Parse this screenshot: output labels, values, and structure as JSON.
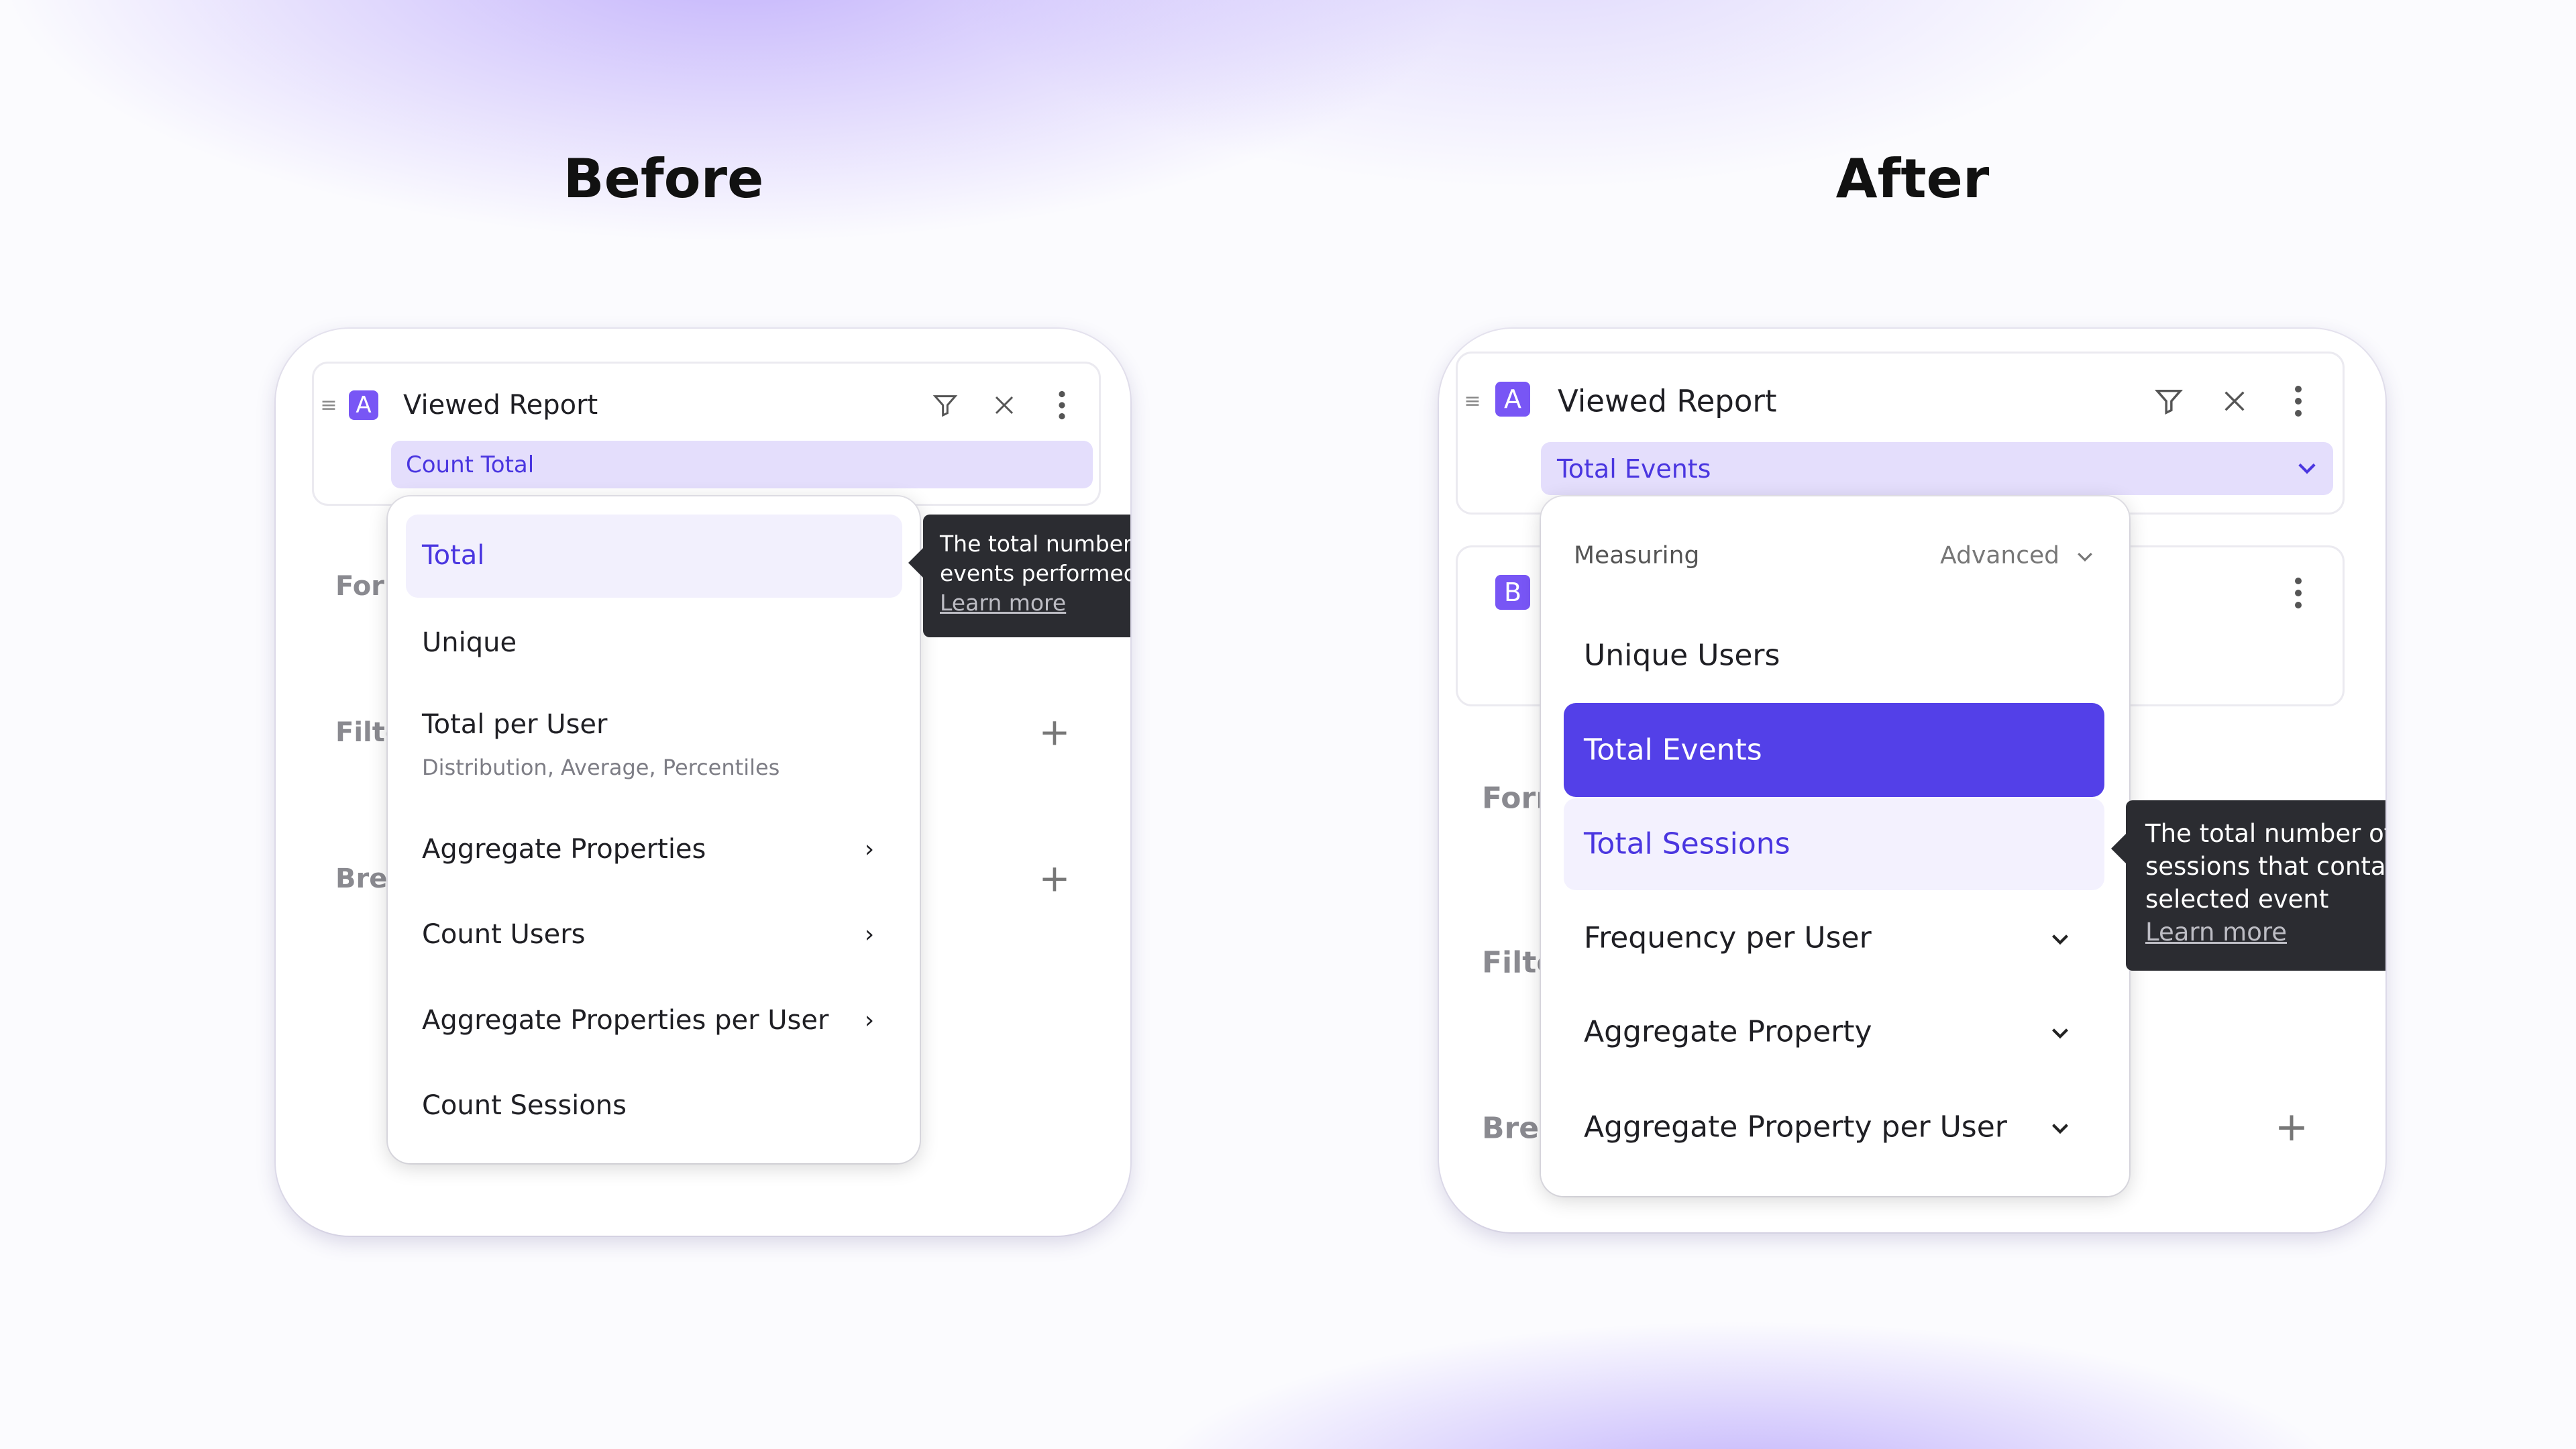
{
  "headings": {
    "before": "Before",
    "after": "After"
  },
  "colors": {
    "accent": "#5340e8",
    "badge": "#7856f5",
    "chip": "#e4defc",
    "tooltip": "#2b2c31"
  },
  "before": {
    "badge": "A",
    "title": "Viewed Report",
    "measure": "Count Total",
    "labels": [
      "Forr",
      "Filte",
      "Brea"
    ],
    "menu": [
      {
        "label": "Total",
        "selected": true
      },
      {
        "label": "Unique"
      },
      {
        "label": "Total per User",
        "subtitle": "Distribution, Average, Percentiles"
      },
      {
        "label": "Aggregate Properties",
        "submenu": true
      },
      {
        "label": "Count Users",
        "submenu": true
      },
      {
        "label": "Aggregate Properties per User",
        "submenu": true
      },
      {
        "label": "Count Sessions"
      }
    ],
    "tooltip": {
      "lines": [
        "The total number",
        "events performed"
      ],
      "link": "Learn more"
    }
  },
  "after": {
    "badge": "A",
    "title": "Viewed Report",
    "measure": "Total Events",
    "badge_b": "B",
    "labels": [
      "Forr",
      "Filte",
      "Brea"
    ],
    "menu_header": "Measuring",
    "menu_mode": "Advanced",
    "menu": [
      {
        "label": "Unique Users"
      },
      {
        "label": "Total Events",
        "selected": true
      },
      {
        "label": "Total Sessions",
        "hovered": true
      },
      {
        "label": "Frequency per User",
        "expandable": true
      },
      {
        "label": "Aggregate Property",
        "expandable": true
      },
      {
        "label": "Aggregate Property per User",
        "expandable": true
      }
    ],
    "tooltip": {
      "lines": [
        "The total number of",
        "sessions that contain",
        "selected event"
      ],
      "link": "Learn more"
    }
  }
}
